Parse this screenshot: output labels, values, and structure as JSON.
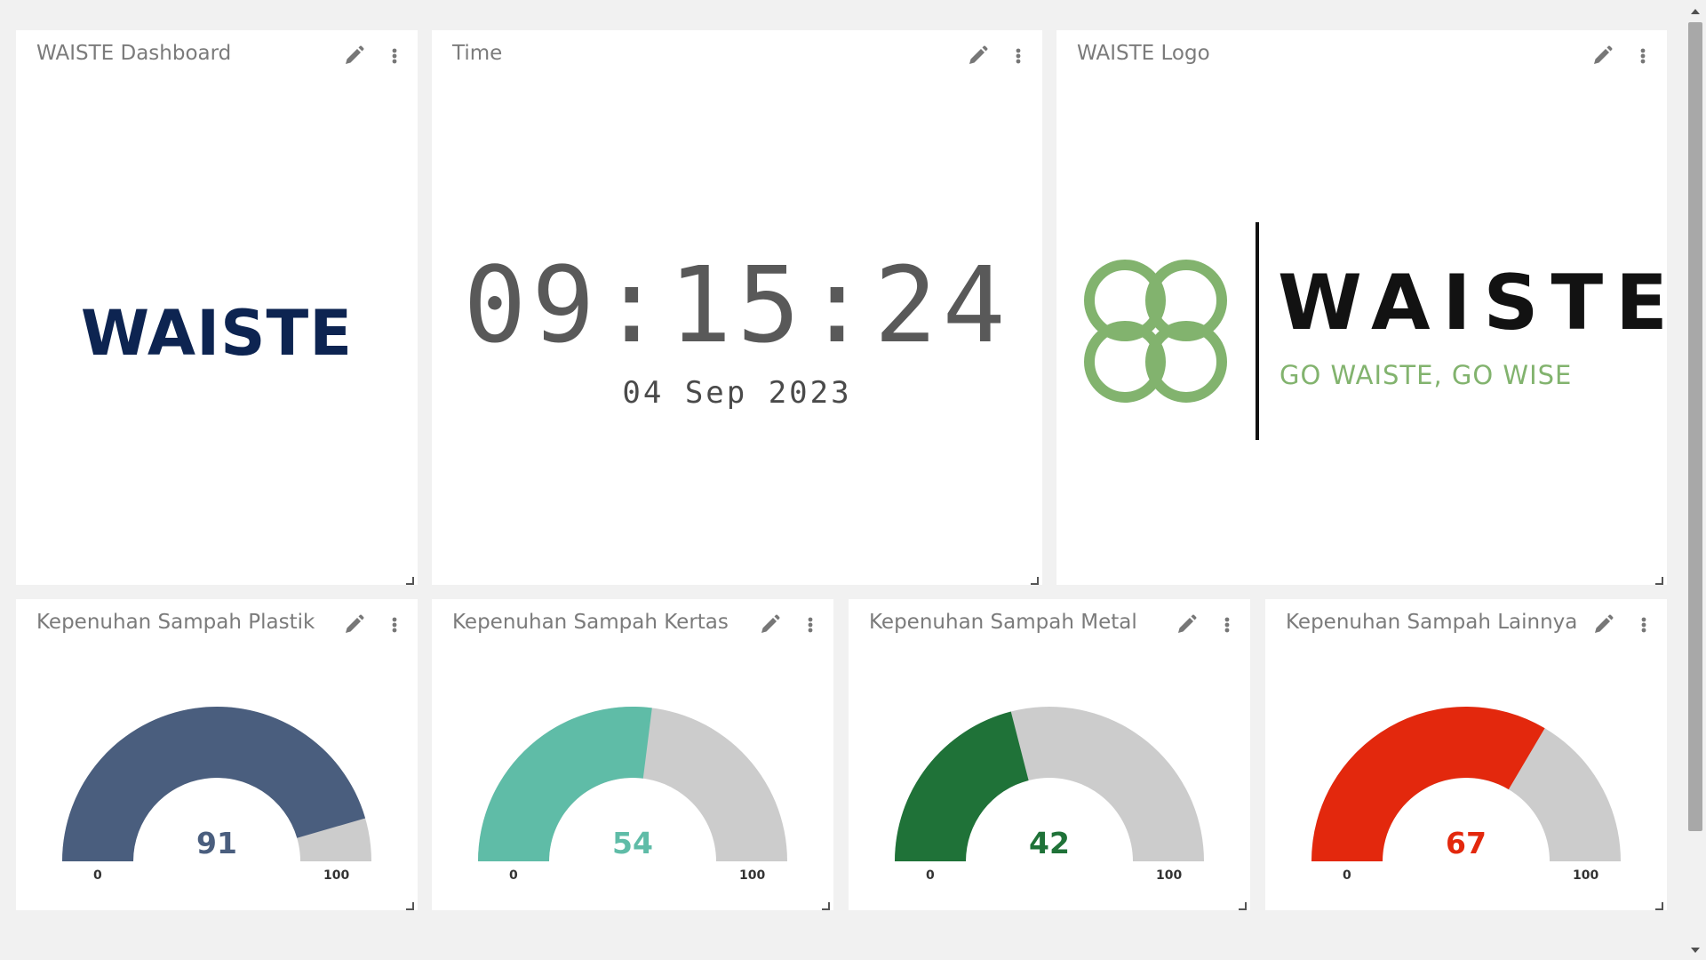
{
  "widgets": {
    "dashboard": {
      "title": "WAISTE Dashboard",
      "brand": "WAISTE"
    },
    "time": {
      "title": "Time",
      "time": "09:15:24",
      "date": "04 Sep 2023"
    },
    "logo": {
      "title": "WAISTE Logo",
      "wordmark": "WAISTE",
      "tagline": "GO WAISTE, GO WISE"
    }
  },
  "gauges": [
    {
      "title": "Kepenuhan Sampah Plastik",
      "value": 91,
      "min": 0,
      "max": 100,
      "color": "#4a5e7e",
      "value_label": "91",
      "min_label": "0",
      "max_label": "100"
    },
    {
      "title": "Kepenuhan Sampah Kertas",
      "value": 54,
      "min": 0,
      "max": 100,
      "color": "#5fbca7",
      "value_label": "54",
      "min_label": "0",
      "max_label": "100"
    },
    {
      "title": "Kepenuhan Sampah Metal",
      "value": 42,
      "min": 0,
      "max": 100,
      "color": "#1f7238",
      "value_label": "42",
      "min_label": "0",
      "max_label": "100"
    },
    {
      "title": "Kepenuhan Sampah Lainnya",
      "value": 67,
      "min": 0,
      "max": 100,
      "color": "#e3280d",
      "value_label": "67",
      "min_label": "0",
      "max_label": "100"
    }
  ],
  "colors": {
    "background": "#f1f1f1",
    "widget": "#ffffff",
    "gauge_track": "#cccccc",
    "brand_navy": "#0d2451",
    "logo_green": "#82b36e"
  },
  "icons": {
    "edit": "pencil-icon",
    "menu": "kebab-menu-icon",
    "resize": "resize-handle-icon"
  }
}
